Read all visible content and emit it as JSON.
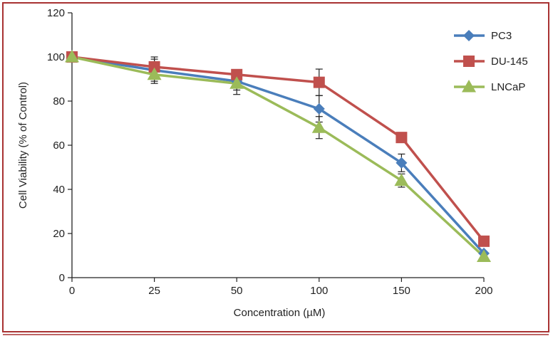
{
  "chart_data": {
    "type": "line",
    "title": "",
    "xlabel": "Concentration (µM)",
    "ylabel": "Cell Viability (% of Control)",
    "categories": [
      "0",
      "25",
      "50",
      "100",
      "150",
      "200"
    ],
    "ylim": [
      0,
      120
    ],
    "yticks": [
      "0",
      "20",
      "40",
      "60",
      "80",
      "100",
      "120"
    ],
    "grid": false,
    "legend_position": "top-right",
    "series": [
      {
        "name": "PC3",
        "marker": "diamond",
        "color": "#4a7ebb",
        "values": [
          100,
          94,
          89,
          76.5,
          52,
          11
        ],
        "errors": [
          0,
          5,
          4,
          6,
          4,
          0
        ]
      },
      {
        "name": "DU-145",
        "marker": "square",
        "color": "#c0504d",
        "values": [
          100,
          95.5,
          92,
          88.5,
          63.5,
          16.5
        ],
        "errors": [
          0,
          4.5,
          0,
          6,
          0,
          0
        ]
      },
      {
        "name": "LNCaP",
        "marker": "triangle",
        "color": "#9bbb59",
        "values": [
          100,
          92,
          88,
          68,
          44,
          9.5
        ],
        "errors": [
          0,
          4,
          5,
          5,
          3,
          0
        ]
      }
    ]
  },
  "colors": {
    "frame_border": "#a83232",
    "axis": "#222222"
  }
}
